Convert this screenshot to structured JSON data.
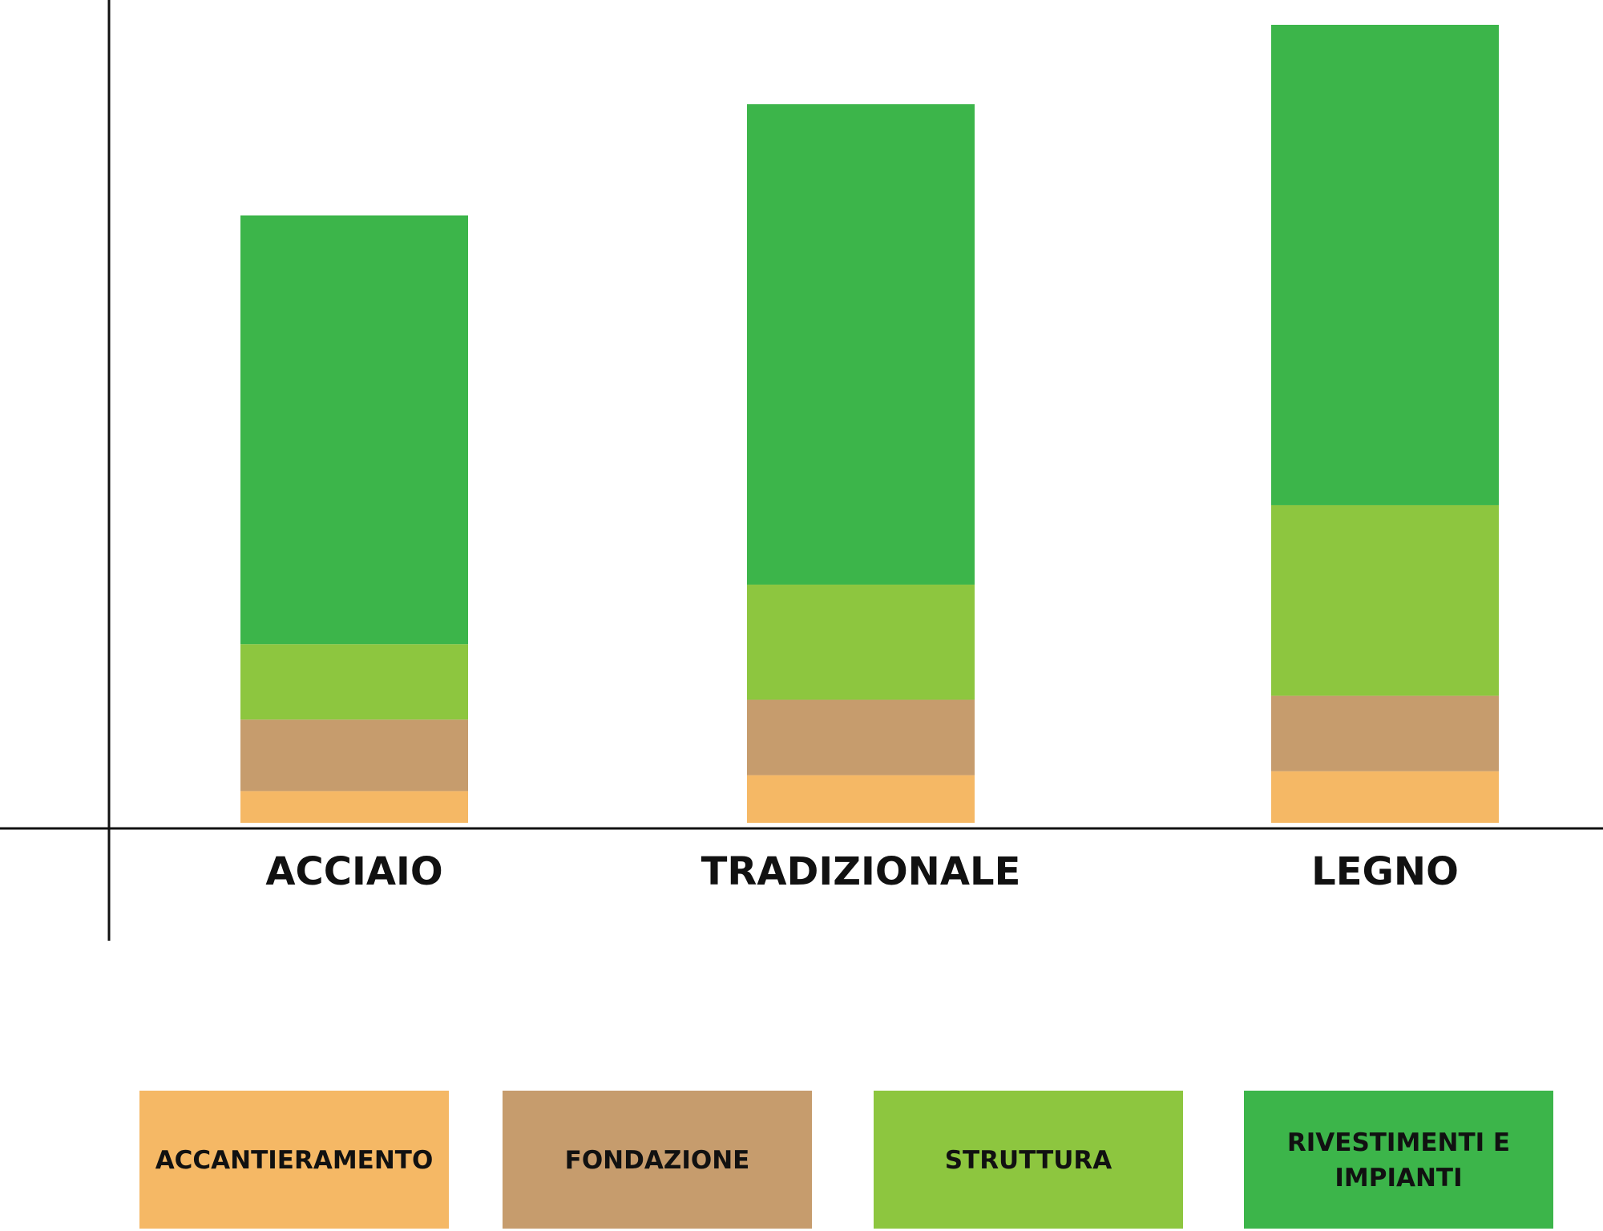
{
  "chart_data": {
    "type": "bar",
    "stacked": true,
    "categories": [
      "ACCIAIO",
      "TRADIZIONALE",
      "LEGNO"
    ],
    "series": [
      {
        "name": "ACCANTIERAMENTO",
        "color": "#f5b865",
        "values": [
          4,
          6,
          6.5
        ]
      },
      {
        "name": "FONDAZIONE",
        "color": "#c69c6d",
        "values": [
          9,
          9.5,
          9.5
        ]
      },
      {
        "name": "STRUTTURA",
        "color": "#8dc63f",
        "values": [
          9.5,
          14.5,
          24
        ]
      },
      {
        "name": "RIVESTIMENTI E IMPIANTI",
        "color": "#3cb54a",
        "values": [
          54,
          60.5,
          60.5
        ]
      }
    ],
    "title": "",
    "xlabel": "",
    "ylabel": "",
    "ylim": [
      0,
      101
    ],
    "grid": false,
    "legend_position": "bottom",
    "y_ticks": false
  }
}
